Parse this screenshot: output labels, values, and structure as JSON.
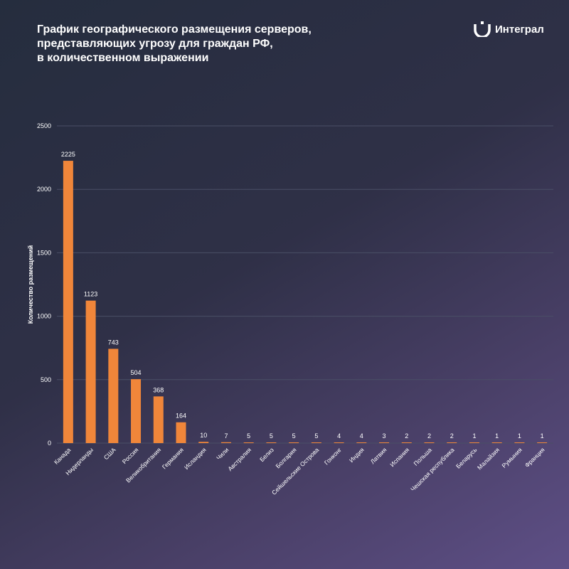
{
  "title_lines": [
    "График географического размещения серверов,",
    "представляющих угрозу для граждан РФ,",
    "в количественном выражении"
  ],
  "brand": {
    "name": "Интеграл",
    "icon": "integral-logo-icon"
  },
  "colors": {
    "bar": "#f0863a",
    "grid": "#4a4f66"
  },
  "chart_data": {
    "type": "bar",
    "title": "График географического размещения серверов, представляющих угрозу для граждан РФ, в количественном выражении",
    "xlabel": "",
    "ylabel": "Количество размещений",
    "ylim": [
      0,
      2500
    ],
    "yticks": [
      0,
      500,
      1000,
      1500,
      2000,
      2500
    ],
    "grid": true,
    "legend": "none",
    "categories": [
      "Канада",
      "Нидерланды",
      "США",
      "Россия",
      "Великобритания",
      "Германия",
      "Исландия",
      "Чили",
      "Австралия",
      "Белиз",
      "Болгария",
      "Сейшельские Острова",
      "Гонконг",
      "Индия",
      "Латвия",
      "Испания",
      "Польша",
      "Чешская республика",
      "Беларусь",
      "Малайзия",
      "Румыния",
      "Франция"
    ],
    "values": [
      2225,
      1123,
      743,
      504,
      368,
      164,
      10,
      7,
      5,
      5,
      5,
      5,
      4,
      4,
      3,
      2,
      2,
      2,
      1,
      1,
      1,
      1
    ]
  }
}
